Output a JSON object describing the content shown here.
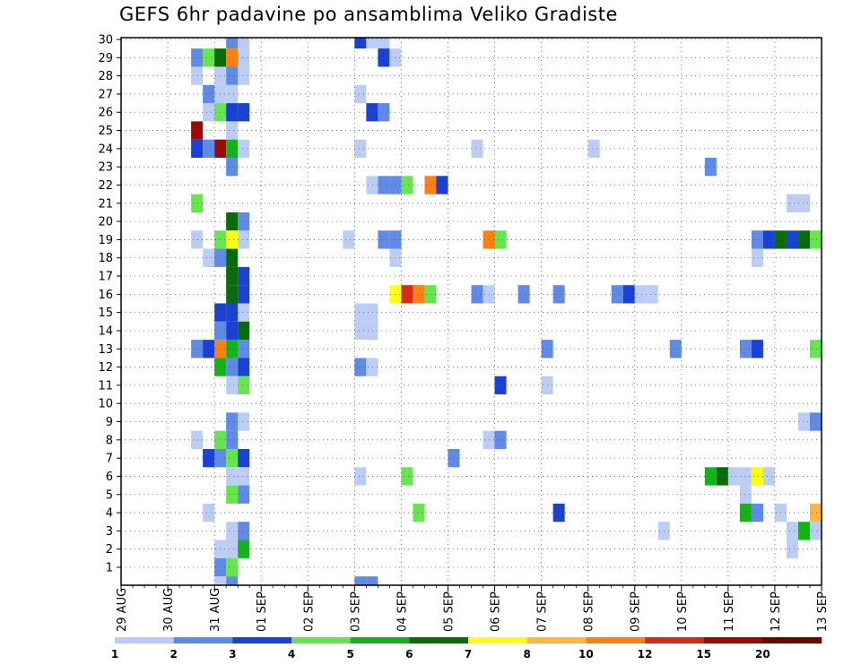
{
  "chart_data": {
    "type": "heatmap",
    "title": "GEFS 6hr padavine po ansamblima Veliko Gradiste",
    "xlabel": "",
    "ylabel": "",
    "x_ticks": [
      "29 AUG",
      "30 AUG",
      "31 AUG",
      "01 SEP",
      "02 SEP",
      "03 SEP",
      "04 SEP",
      "05 SEP",
      "06 SEP",
      "07 SEP",
      "08 SEP",
      "09 SEP",
      "10 SEP",
      "11 SEP",
      "12 SEP",
      "13 SEP"
    ],
    "y_ticks": [
      "1",
      "2",
      "3",
      "4",
      "5",
      "6",
      "7",
      "8",
      "9",
      "10",
      "11",
      "12",
      "13",
      "14",
      "15",
      "16",
      "17",
      "18",
      "19",
      "20",
      "21",
      "22",
      "23",
      "24",
      "25",
      "26",
      "27",
      "28",
      "29",
      "30"
    ],
    "members_range": [
      1,
      30
    ],
    "steps_per_day": 4,
    "grid": "dotted",
    "legend_placement": "bottom",
    "legend": {
      "labels": [
        "1",
        "2",
        "3",
        "4",
        "5",
        "6",
        "7",
        "8",
        "10",
        "12",
        "15",
        "20"
      ],
      "colors": [
        "#bccdf5",
        "#5f8ae8",
        "#1a41d6",
        "#66e64d",
        "#13b31a",
        "#096b09",
        "#ffff10",
        "#ffb642",
        "#ff7f10",
        "#d42d10",
        "#a00808",
        "#6b0606"
      ]
    },
    "cells": [
      {
        "m": 30,
        "s": 9,
        "c": 1
      },
      {
        "m": 30,
        "s": 10,
        "c": 0
      },
      {
        "m": 30,
        "s": 20,
        "c": 2
      },
      {
        "m": 30,
        "s": 21,
        "c": 0
      },
      {
        "m": 30,
        "s": 22,
        "c": 0
      },
      {
        "m": 29,
        "s": 6,
        "c": 1
      },
      {
        "m": 29,
        "s": 7,
        "c": 3
      },
      {
        "m": 29,
        "s": 8,
        "c": 5
      },
      {
        "m": 29,
        "s": 9,
        "c": 8
      },
      {
        "m": 29,
        "s": 10,
        "c": 0
      },
      {
        "m": 29,
        "s": 22,
        "c": 2
      },
      {
        "m": 29,
        "s": 23,
        "c": 0
      },
      {
        "m": 28,
        "s": 6,
        "c": 0
      },
      {
        "m": 28,
        "s": 8,
        "c": 0
      },
      {
        "m": 28,
        "s": 9,
        "c": 1
      },
      {
        "m": 28,
        "s": 10,
        "c": 0
      },
      {
        "m": 27,
        "s": 7,
        "c": 1
      },
      {
        "m": 27,
        "s": 8,
        "c": 0
      },
      {
        "m": 27,
        "s": 9,
        "c": 0
      },
      {
        "m": 27,
        "s": 20,
        "c": 0
      },
      {
        "m": 26,
        "s": 7,
        "c": 0
      },
      {
        "m": 26,
        "s": 8,
        "c": 3
      },
      {
        "m": 26,
        "s": 9,
        "c": 2
      },
      {
        "m": 26,
        "s": 10,
        "c": 2
      },
      {
        "m": 26,
        "s": 21,
        "c": 2
      },
      {
        "m": 26,
        "s": 22,
        "c": 1
      },
      {
        "m": 25,
        "s": 6,
        "c": 10
      },
      {
        "m": 25,
        "s": 9,
        "c": 0
      },
      {
        "m": 24,
        "s": 6,
        "c": 2
      },
      {
        "m": 24,
        "s": 7,
        "c": 1
      },
      {
        "m": 24,
        "s": 8,
        "c": 10
      },
      {
        "m": 24,
        "s": 9,
        "c": 4
      },
      {
        "m": 24,
        "s": 10,
        "c": 0
      },
      {
        "m": 24,
        "s": 20,
        "c": 0
      },
      {
        "m": 24,
        "s": 30,
        "c": 0
      },
      {
        "m": 24,
        "s": 40,
        "c": 0
      },
      {
        "m": 23,
        "s": 9,
        "c": 1
      },
      {
        "m": 23,
        "s": 50,
        "c": 1
      },
      {
        "m": 22,
        "s": 21,
        "c": 0
      },
      {
        "m": 22,
        "s": 22,
        "c": 1
      },
      {
        "m": 22,
        "s": 23,
        "c": 1
      },
      {
        "m": 22,
        "s": 24,
        "c": 3
      },
      {
        "m": 22,
        "s": 26,
        "c": 8
      },
      {
        "m": 22,
        "s": 27,
        "c": 2
      },
      {
        "m": 21,
        "s": 6,
        "c": 3
      },
      {
        "m": 21,
        "s": 57,
        "c": 0
      },
      {
        "m": 21,
        "s": 58,
        "c": 0
      },
      {
        "m": 20,
        "s": 9,
        "c": 5
      },
      {
        "m": 20,
        "s": 10,
        "c": 1
      },
      {
        "m": 19,
        "s": 6,
        "c": 0
      },
      {
        "m": 19,
        "s": 8,
        "c": 3
      },
      {
        "m": 19,
        "s": 9,
        "c": 6
      },
      {
        "m": 19,
        "s": 10,
        "c": 0
      },
      {
        "m": 19,
        "s": 19,
        "c": 0
      },
      {
        "m": 19,
        "s": 22,
        "c": 1
      },
      {
        "m": 19,
        "s": 23,
        "c": 1
      },
      {
        "m": 19,
        "s": 31,
        "c": 8
      },
      {
        "m": 19,
        "s": 32,
        "c": 3
      },
      {
        "m": 19,
        "s": 54,
        "c": 1
      },
      {
        "m": 19,
        "s": 55,
        "c": 2
      },
      {
        "m": 19,
        "s": 56,
        "c": 5
      },
      {
        "m": 19,
        "s": 57,
        "c": 2
      },
      {
        "m": 19,
        "s": 58,
        "c": 5
      },
      {
        "m": 19,
        "s": 59,
        "c": 3
      },
      {
        "m": 18,
        "s": 7,
        "c": 0
      },
      {
        "m": 18,
        "s": 8,
        "c": 1
      },
      {
        "m": 18,
        "s": 9,
        "c": 5
      },
      {
        "m": 18,
        "s": 23,
        "c": 0
      },
      {
        "m": 18,
        "s": 54,
        "c": 0
      },
      {
        "m": 17,
        "s": 9,
        "c": 5
      },
      {
        "m": 17,
        "s": 10,
        "c": 2
      },
      {
        "m": 16,
        "s": 9,
        "c": 5
      },
      {
        "m": 16,
        "s": 10,
        "c": 2
      },
      {
        "m": 16,
        "s": 23,
        "c": 6
      },
      {
        "m": 16,
        "s": 24,
        "c": 9
      },
      {
        "m": 16,
        "s": 25,
        "c": 8
      },
      {
        "m": 16,
        "s": 26,
        "c": 3
      },
      {
        "m": 16,
        "s": 30,
        "c": 1
      },
      {
        "m": 16,
        "s": 31,
        "c": 0
      },
      {
        "m": 16,
        "s": 34,
        "c": 1
      },
      {
        "m": 16,
        "s": 37,
        "c": 1
      },
      {
        "m": 16,
        "s": 42,
        "c": 1
      },
      {
        "m": 16,
        "s": 43,
        "c": 2
      },
      {
        "m": 16,
        "s": 44,
        "c": 0
      },
      {
        "m": 16,
        "s": 45,
        "c": 0
      },
      {
        "m": 15,
        "s": 8,
        "c": 2
      },
      {
        "m": 15,
        "s": 9,
        "c": 2
      },
      {
        "m": 15,
        "s": 10,
        "c": 0
      },
      {
        "m": 15,
        "s": 20,
        "c": 0
      },
      {
        "m": 15,
        "s": 21,
        "c": 0
      },
      {
        "m": 14,
        "s": 8,
        "c": 1
      },
      {
        "m": 14,
        "s": 9,
        "c": 2
      },
      {
        "m": 14,
        "s": 10,
        "c": 5
      },
      {
        "m": 14,
        "s": 20,
        "c": 0
      },
      {
        "m": 14,
        "s": 21,
        "c": 0
      },
      {
        "m": 13,
        "s": 6,
        "c": 1
      },
      {
        "m": 13,
        "s": 7,
        "c": 2
      },
      {
        "m": 13,
        "s": 8,
        "c": 8
      },
      {
        "m": 13,
        "s": 9,
        "c": 4
      },
      {
        "m": 13,
        "s": 10,
        "c": 1
      },
      {
        "m": 13,
        "s": 36,
        "c": 1
      },
      {
        "m": 13,
        "s": 47,
        "c": 1
      },
      {
        "m": 13,
        "s": 53,
        "c": 1
      },
      {
        "m": 13,
        "s": 54,
        "c": 2
      },
      {
        "m": 13,
        "s": 59,
        "c": 3
      },
      {
        "m": 12,
        "s": 8,
        "c": 4
      },
      {
        "m": 12,
        "s": 9,
        "c": 1
      },
      {
        "m": 12,
        "s": 10,
        "c": 2
      },
      {
        "m": 12,
        "s": 20,
        "c": 1
      },
      {
        "m": 12,
        "s": 21,
        "c": 0
      },
      {
        "m": 11,
        "s": 9,
        "c": 0
      },
      {
        "m": 11,
        "s": 10,
        "c": 3
      },
      {
        "m": 11,
        "s": 32,
        "c": 2
      },
      {
        "m": 11,
        "s": 36,
        "c": 0
      },
      {
        "m": 9,
        "s": 9,
        "c": 1
      },
      {
        "m": 9,
        "s": 10,
        "c": 0
      },
      {
        "m": 9,
        "s": 58,
        "c": 0
      },
      {
        "m": 9,
        "s": 59,
        "c": 1
      },
      {
        "m": 8,
        "s": 6,
        "c": 0
      },
      {
        "m": 8,
        "s": 8,
        "c": 3
      },
      {
        "m": 8,
        "s": 9,
        "c": 1
      },
      {
        "m": 8,
        "s": 31,
        "c": 0
      },
      {
        "m": 8,
        "s": 32,
        "c": 1
      },
      {
        "m": 7,
        "s": 7,
        "c": 2
      },
      {
        "m": 7,
        "s": 8,
        "c": 1
      },
      {
        "m": 7,
        "s": 9,
        "c": 3
      },
      {
        "m": 7,
        "s": 10,
        "c": 2
      },
      {
        "m": 7,
        "s": 28,
        "c": 1
      },
      {
        "m": 6,
        "s": 9,
        "c": 0
      },
      {
        "m": 6,
        "s": 10,
        "c": 0
      },
      {
        "m": 6,
        "s": 20,
        "c": 0
      },
      {
        "m": 6,
        "s": 24,
        "c": 3
      },
      {
        "m": 6,
        "s": 50,
        "c": 4
      },
      {
        "m": 6,
        "s": 51,
        "c": 5
      },
      {
        "m": 6,
        "s": 52,
        "c": 0
      },
      {
        "m": 6,
        "s": 53,
        "c": 0
      },
      {
        "m": 6,
        "s": 54,
        "c": 6
      },
      {
        "m": 6,
        "s": 55,
        "c": 0
      },
      {
        "m": 5,
        "s": 9,
        "c": 3
      },
      {
        "m": 5,
        "s": 10,
        "c": 1
      },
      {
        "m": 5,
        "s": 53,
        "c": 0
      },
      {
        "m": 4,
        "s": 7,
        "c": 0
      },
      {
        "m": 4,
        "s": 25,
        "c": 3
      },
      {
        "m": 4,
        "s": 37,
        "c": 2
      },
      {
        "m": 4,
        "s": 53,
        "c": 4
      },
      {
        "m": 4,
        "s": 54,
        "c": 1
      },
      {
        "m": 4,
        "s": 56,
        "c": 0
      },
      {
        "m": 4,
        "s": 59,
        "c": 7
      },
      {
        "m": 3,
        "s": 9,
        "c": 0
      },
      {
        "m": 3,
        "s": 10,
        "c": 1
      },
      {
        "m": 3,
        "s": 46,
        "c": 0
      },
      {
        "m": 3,
        "s": 57,
        "c": 0
      },
      {
        "m": 3,
        "s": 58,
        "c": 4
      },
      {
        "m": 3,
        "s": 59,
        "c": 0
      },
      {
        "m": 2,
        "s": 8,
        "c": 0
      },
      {
        "m": 2,
        "s": 9,
        "c": 0
      },
      {
        "m": 2,
        "s": 10,
        "c": 4
      },
      {
        "m": 2,
        "s": 57,
        "c": 0
      },
      {
        "m": 1,
        "s": 8,
        "c": 1
      },
      {
        "m": 1,
        "s": 9,
        "c": 3
      },
      {
        "m": 0,
        "s": 8,
        "c": 0
      },
      {
        "m": 0,
        "s": 9,
        "c": 1
      },
      {
        "m": 0,
        "s": 20,
        "c": 1
      },
      {
        "m": 0,
        "s": 21,
        "c": 1
      }
    ]
  }
}
